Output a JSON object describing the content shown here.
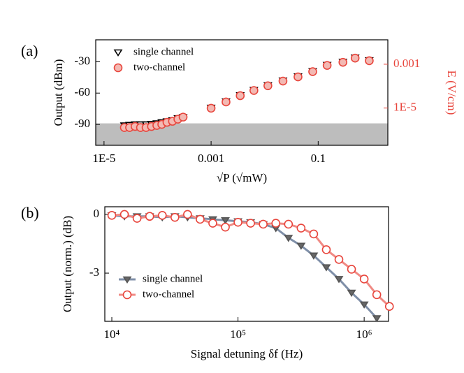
{
  "chart_data": [
    {
      "type": "scatter",
      "panel_label": "(a)",
      "x_label": "√P (√mW)",
      "y_label": "Output (dBm)",
      "y2_label": "E (V/cm)",
      "y2_color": "#e8453c",
      "xscale": "log",
      "xlim": [
        7e-06,
        2
      ],
      "xticks": [
        {
          "value": 1e-05,
          "label": "1E-5"
        },
        0.001,
        0.1
      ],
      "ylim": [
        -110,
        -9
      ],
      "yticks": [
        -90,
        -60,
        -30
      ],
      "y2scale": "log",
      "y2lim": [
        2e-07,
        0.013
      ],
      "y2ticks": [
        {
          "value": 1e-05,
          "label": "1E-5"
        },
        0.001
      ],
      "noise_floor": -89,
      "noise_color": "#bdbdbd",
      "legend": "upper left",
      "x": [
        2.4e-05,
        3e-05,
        3.8e-05,
        4.8e-05,
        6.1e-05,
        7.7e-05,
        9.7e-05,
        0.00012,
        0.00015,
        0.00019,
        0.00024,
        0.0003,
        0.001,
        0.0019,
        0.0035,
        0.0063,
        0.0115,
        0.022,
        0.042,
        0.079,
        0.147,
        0.29,
        0.49,
        0.9
      ],
      "series": [
        {
          "name": "single channel",
          "color": "#000000",
          "fill": "#ffffff",
          "marker": "triangle-down",
          "line": false,
          "values": [
            -91,
            -90.5,
            -90,
            -90,
            -90,
            -89.5,
            -89,
            -88,
            -87,
            -86,
            -84,
            -83,
            -74,
            -68,
            -62,
            -57,
            -52.5,
            -48,
            -44,
            -39,
            -33,
            -30,
            -26,
            -28.5
          ]
        },
        {
          "name": "two-channel",
          "color": "#e8453c",
          "fill": "#f3b9b3",
          "marker": "circle",
          "line": false,
          "values": [
            -93,
            -93,
            -92,
            -93,
            -93,
            -92,
            -91,
            -90,
            -88,
            -87,
            -85,
            -83,
            -74.5,
            -68.5,
            -62.5,
            -57.5,
            -53,
            -48.5,
            -44.5,
            -39.5,
            -33.5,
            -30.5,
            -26.5,
            -29
          ]
        }
      ]
    },
    {
      "type": "line",
      "panel_label": "(b)",
      "x_label": "Signal detuning δf (Hz)",
      "y_label": "Output (norm.) (dB)",
      "xscale": "log",
      "xlim": [
        8800,
        1560000
      ],
      "xticks": [
        {
          "value": 10000,
          "label": "10⁴"
        },
        {
          "value": 100000,
          "label": "10⁵"
        },
        {
          "value": 1000000,
          "label": "10⁶"
        }
      ],
      "ylim": [
        -5.46,
        0.39
      ],
      "yticks": [
        -3,
        0
      ],
      "legend": "lower left",
      "x": [
        10000,
        12589,
        15849,
        19953,
        25119,
        31623,
        39811,
        50119,
        63096,
        79433,
        100000,
        125893,
        158489,
        199526,
        251189,
        316228,
        398107,
        501187,
        630957,
        794328,
        1000000,
        1258925,
        1584893
      ],
      "series": [
        {
          "name": "single channel",
          "color": "#555555",
          "fill": "#666666",
          "line_color": "#7f8fa8",
          "marker": "triangle-down",
          "line": true,
          "values": [
            -0.05,
            -0.1,
            -0.1,
            -0.1,
            -0.15,
            -0.1,
            -0.15,
            -0.2,
            -0.25,
            -0.3,
            -0.35,
            -0.4,
            -0.5,
            -0.7,
            -1.2,
            -1.6,
            -2.1,
            -2.7,
            -3.3,
            -4.0,
            -4.6,
            -5.3,
            null
          ]
        },
        {
          "name": "two-channel",
          "color": "#e8453c",
          "fill": "#ffffff",
          "line_color": "#f08a84",
          "marker": "circle",
          "line": true,
          "values": [
            -0.05,
            0.0,
            -0.2,
            -0.1,
            -0.05,
            -0.15,
            0.0,
            -0.25,
            -0.45,
            -0.65,
            -0.4,
            -0.45,
            -0.5,
            -0.45,
            -0.5,
            -0.7,
            -1.0,
            -1.8,
            -2.3,
            -2.8,
            -3.3,
            -4.1,
            -4.7
          ]
        }
      ]
    }
  ]
}
